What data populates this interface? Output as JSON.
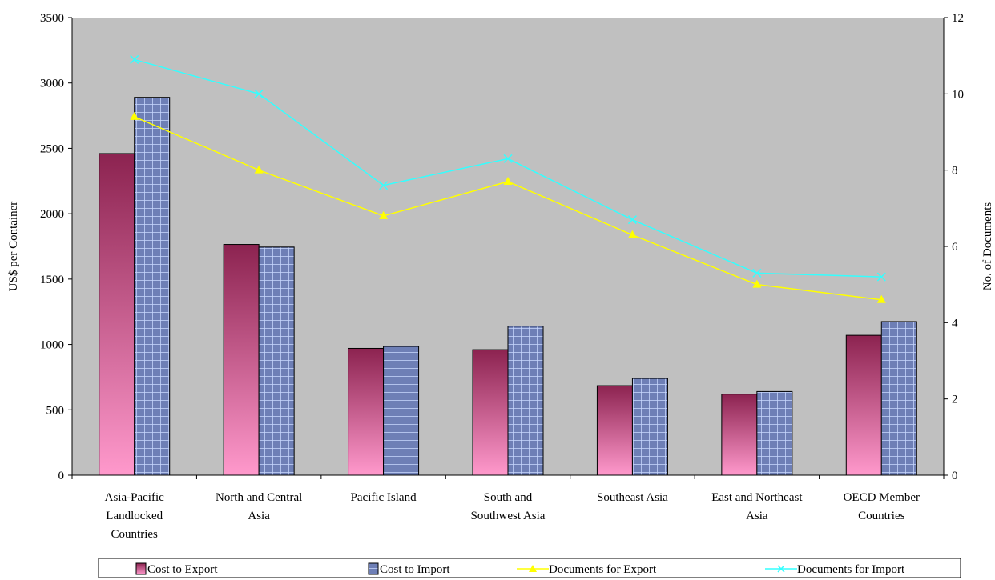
{
  "chart_data": {
    "type": "bar",
    "categories": [
      [
        "Asia-Pacific",
        "Landlocked",
        "Countries"
      ],
      [
        "North and Central",
        "Asia"
      ],
      [
        "Pacific Island"
      ],
      [
        "South and",
        "Southwest Asia"
      ],
      [
        "Southeast Asia"
      ],
      [
        "East and Northeast",
        "Asia"
      ],
      [
        "OECD Member",
        "Countries"
      ]
    ],
    "series": [
      {
        "name": "Cost to Export",
        "kind": "bar",
        "axis": "left",
        "values": [
          2460,
          1765,
          970,
          960,
          685,
          620,
          1070
        ],
        "color": "#a0305c"
      },
      {
        "name": "Cost to Import",
        "kind": "bar",
        "axis": "left",
        "values": [
          2890,
          1745,
          985,
          1140,
          740,
          640,
          1175
        ],
        "color": "#6e7fb6"
      },
      {
        "name": "Documents for Export",
        "kind": "line",
        "axis": "right",
        "values": [
          9.4,
          8.0,
          6.8,
          7.7,
          6.3,
          5.0,
          4.6
        ],
        "color": "#ffff00",
        "marker": "triangle"
      },
      {
        "name": "Documents for Import",
        "kind": "line",
        "axis": "right",
        "values": [
          10.9,
          10.0,
          7.6,
          8.3,
          6.7,
          5.3,
          5.2
        ],
        "color": "#33ffff",
        "marker": "x"
      }
    ],
    "ylabel": "US$ per Container",
    "y2label": "No. of Documents",
    "ylim": [
      0,
      3500
    ],
    "y2lim": [
      0,
      12
    ],
    "yticks": [
      "0",
      "500",
      "1000",
      "1500",
      "2000",
      "2500",
      "3000",
      "3500"
    ],
    "y2ticks": [
      "0",
      "2",
      "4",
      "6",
      "8",
      "10",
      "12"
    ],
    "plot_background": "#c0c0c0",
    "grid": false,
    "legend_position": "bottom"
  }
}
